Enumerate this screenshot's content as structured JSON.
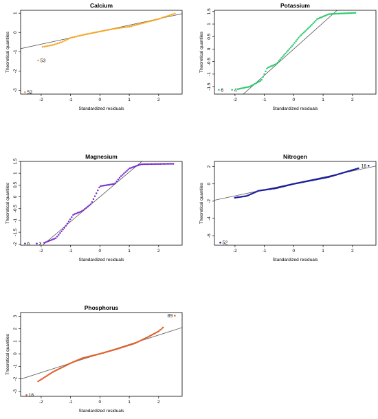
{
  "chart_data": [
    {
      "id": "calcium",
      "type": "scatter",
      "title": "Calcium",
      "xlabel": "Standardized residuals",
      "ylabel": "Theoretical quantiles",
      "xlim": [
        -2.7,
        2.8
      ],
      "ylim": [
        -3.2,
        1.15
      ],
      "xticks": [
        -2,
        -1,
        0,
        1,
        2
      ],
      "yticks": [
        -3,
        -2,
        -1,
        0,
        1
      ],
      "color": "#f5a623",
      "ref_line": {
        "slope": 0.33,
        "intercept": 0.05
      },
      "outliers": [
        {
          "x": -2.1,
          "y": -1.45,
          "label": "53"
        },
        {
          "x": -2.55,
          "y": -3.1,
          "label": "52"
        }
      ],
      "anchors": [
        [
          -1.95,
          -0.75
        ],
        [
          -1.6,
          -0.65
        ],
        [
          -1.3,
          -0.5
        ],
        [
          -1.0,
          -0.28
        ],
        [
          -0.5,
          -0.1
        ],
        [
          0.0,
          0.05
        ],
        [
          0.5,
          0.2
        ],
        [
          1.0,
          0.3
        ],
        [
          1.5,
          0.5
        ],
        [
          2.0,
          0.7
        ],
        [
          2.55,
          0.98
        ]
      ],
      "n": 80
    },
    {
      "id": "potassium",
      "type": "scatter",
      "title": "Potassium",
      "xlabel": "Standardized residuals",
      "ylabel": "Theoretical quantiles",
      "xlim": [
        -2.7,
        2.8
      ],
      "ylim": [
        -1.8,
        1.55
      ],
      "xticks": [
        -2,
        -1,
        0,
        1,
        2
      ],
      "yticks": [
        -1.5,
        -1.0,
        -0.5,
        0.0,
        0.5,
        1.0,
        1.5
      ],
      "color": "#2ecc71",
      "ref_line": {
        "slope": 1.05,
        "intercept": 0.0
      },
      "outliers": [
        {
          "x": -2.55,
          "y": -1.63,
          "label": "6"
        },
        {
          "x": -2.1,
          "y": -1.63,
          "label": "4"
        }
      ],
      "anchors": [
        [
          -1.9,
          -1.6
        ],
        [
          -1.5,
          -1.5
        ],
        [
          -1.1,
          -1.25
        ],
        [
          -0.9,
          -0.75
        ],
        [
          -0.6,
          -0.6
        ],
        [
          -0.3,
          -0.2
        ],
        [
          0.0,
          0.2
        ],
        [
          0.2,
          0.5
        ],
        [
          0.6,
          0.95
        ],
        [
          0.8,
          1.2
        ],
        [
          1.2,
          1.4
        ],
        [
          2.1,
          1.45
        ]
      ],
      "n": 90
    },
    {
      "id": "magnesium",
      "type": "scatter",
      "title": "Magnesium",
      "xlabel": "Standardized residuals",
      "ylabel": "Theoretical quantiles",
      "xlim": [
        -2.7,
        2.8
      ],
      "ylim": [
        -2.05,
        1.5
      ],
      "xticks": [
        -2,
        -1,
        0,
        1,
        2
      ],
      "yticks": [
        -2.0,
        -1.5,
        -1.0,
        -0.5,
        0.0,
        0.5,
        1.0,
        1.5
      ],
      "color": "#7b2fd0",
      "ref_line": {
        "slope": 1.05,
        "intercept": 0.0
      },
      "outliers": [
        {
          "x": -2.55,
          "y": -1.98,
          "label": "6"
        },
        {
          "x": -2.15,
          "y": -1.98,
          "label": "3"
        }
      ],
      "anchors": [
        [
          -1.9,
          -1.95
        ],
        [
          -1.5,
          -1.75
        ],
        [
          -1.2,
          -1.3
        ],
        [
          -0.9,
          -0.75
        ],
        [
          -0.6,
          -0.6
        ],
        [
          -0.3,
          -0.3
        ],
        [
          0.0,
          0.45
        ],
        [
          0.5,
          0.55
        ],
        [
          0.7,
          0.85
        ],
        [
          1.0,
          1.2
        ],
        [
          1.4,
          1.38
        ],
        [
          2.5,
          1.4
        ]
      ],
      "n": 90
    },
    {
      "id": "nitrogen",
      "type": "scatter",
      "title": "Nitrogen",
      "xlabel": "Standardized residuals",
      "ylabel": "Theoretical quantiles",
      "xlim": [
        -2.7,
        2.8
      ],
      "ylim": [
        -7.1,
        2.6
      ],
      "xticks": [
        -2,
        -1,
        0,
        1,
        2
      ],
      "yticks": [
        -6,
        -4,
        -2,
        0,
        2
      ],
      "color": "#1a1aa0",
      "ref_line": {
        "slope": 0.72,
        "intercept": 0.05
      },
      "outliers": [
        {
          "x": 2.55,
          "y": 2.1,
          "label": "16"
        },
        {
          "x": -2.5,
          "y": -6.8,
          "label": "52"
        }
      ],
      "anchors": [
        [
          -2.0,
          -1.6
        ],
        [
          -1.6,
          -1.4
        ],
        [
          -1.2,
          -0.8
        ],
        [
          -0.6,
          -0.5
        ],
        [
          0.0,
          0.0
        ],
        [
          0.6,
          0.4
        ],
        [
          1.2,
          0.8
        ],
        [
          1.8,
          1.4
        ],
        [
          2.2,
          1.8
        ]
      ],
      "n": 95
    },
    {
      "id": "phosphorus",
      "type": "scatter",
      "title": "Phosphorus",
      "xlabel": "Standardized residuals",
      "ylabel": "Theoretical quantiles",
      "xlim": [
        -2.7,
        2.8
      ],
      "ylim": [
        -3.4,
        3.3
      ],
      "xticks": [
        -2,
        -1,
        0,
        1,
        2
      ],
      "yticks": [
        -3,
        -2,
        -1,
        0,
        1,
        2,
        3
      ],
      "color": "#e0602a",
      "ref_line": {
        "slope": 0.75,
        "intercept": 0.0
      },
      "outliers": [
        {
          "x": 2.55,
          "y": 3.05,
          "label": "89"
        },
        {
          "x": -2.5,
          "y": -3.3,
          "label": "16"
        }
      ],
      "anchors": [
        [
          -2.1,
          -2.2
        ],
        [
          -1.6,
          -1.45
        ],
        [
          -1.0,
          -0.75
        ],
        [
          -0.6,
          -0.35
        ],
        [
          0.0,
          0.0
        ],
        [
          0.6,
          0.4
        ],
        [
          1.2,
          0.85
        ],
        [
          1.6,
          1.3
        ],
        [
          2.0,
          1.8
        ],
        [
          2.15,
          2.1
        ]
      ],
      "n": 95
    }
  ]
}
